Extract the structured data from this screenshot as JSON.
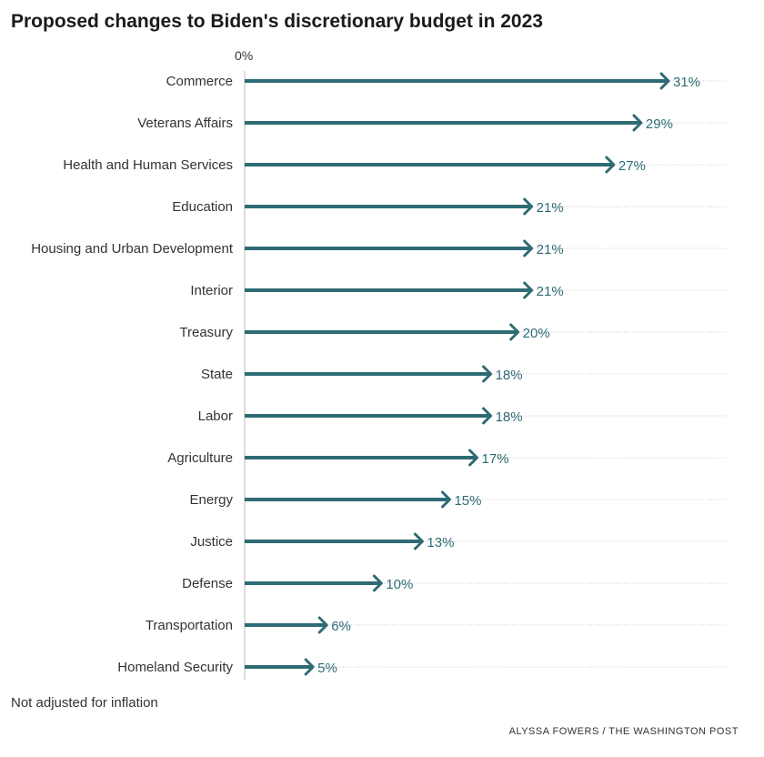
{
  "chart_data": {
    "type": "bar",
    "title": "Proposed changes to Biden's discretionary budget in 2023",
    "axis_label": "0%",
    "note": "Not adjusted for inflation",
    "credit": "ALYSSA FOWERS / THE WASHINGTON POST",
    "color": "#2e6b74",
    "xlim": [
      0,
      31
    ],
    "categories": [
      "Commerce",
      "Veterans Affairs",
      "Health and Human Services",
      "Education",
      "Housing and Urban Development",
      "Interior",
      "Treasury",
      "State",
      "Labor",
      "Agriculture",
      "Energy",
      "Justice",
      "Defense",
      "Transportation",
      "Homeland Security"
    ],
    "values": [
      31,
      29,
      27,
      21,
      21,
      21,
      20,
      18,
      18,
      17,
      15,
      13,
      10,
      6,
      5
    ],
    "labels": [
      "31%",
      "29%",
      "27%",
      "21%",
      "21%",
      "21%",
      "20%",
      "18%",
      "18%",
      "17%",
      "15%",
      "13%",
      "10%",
      "6%",
      "5%"
    ]
  }
}
